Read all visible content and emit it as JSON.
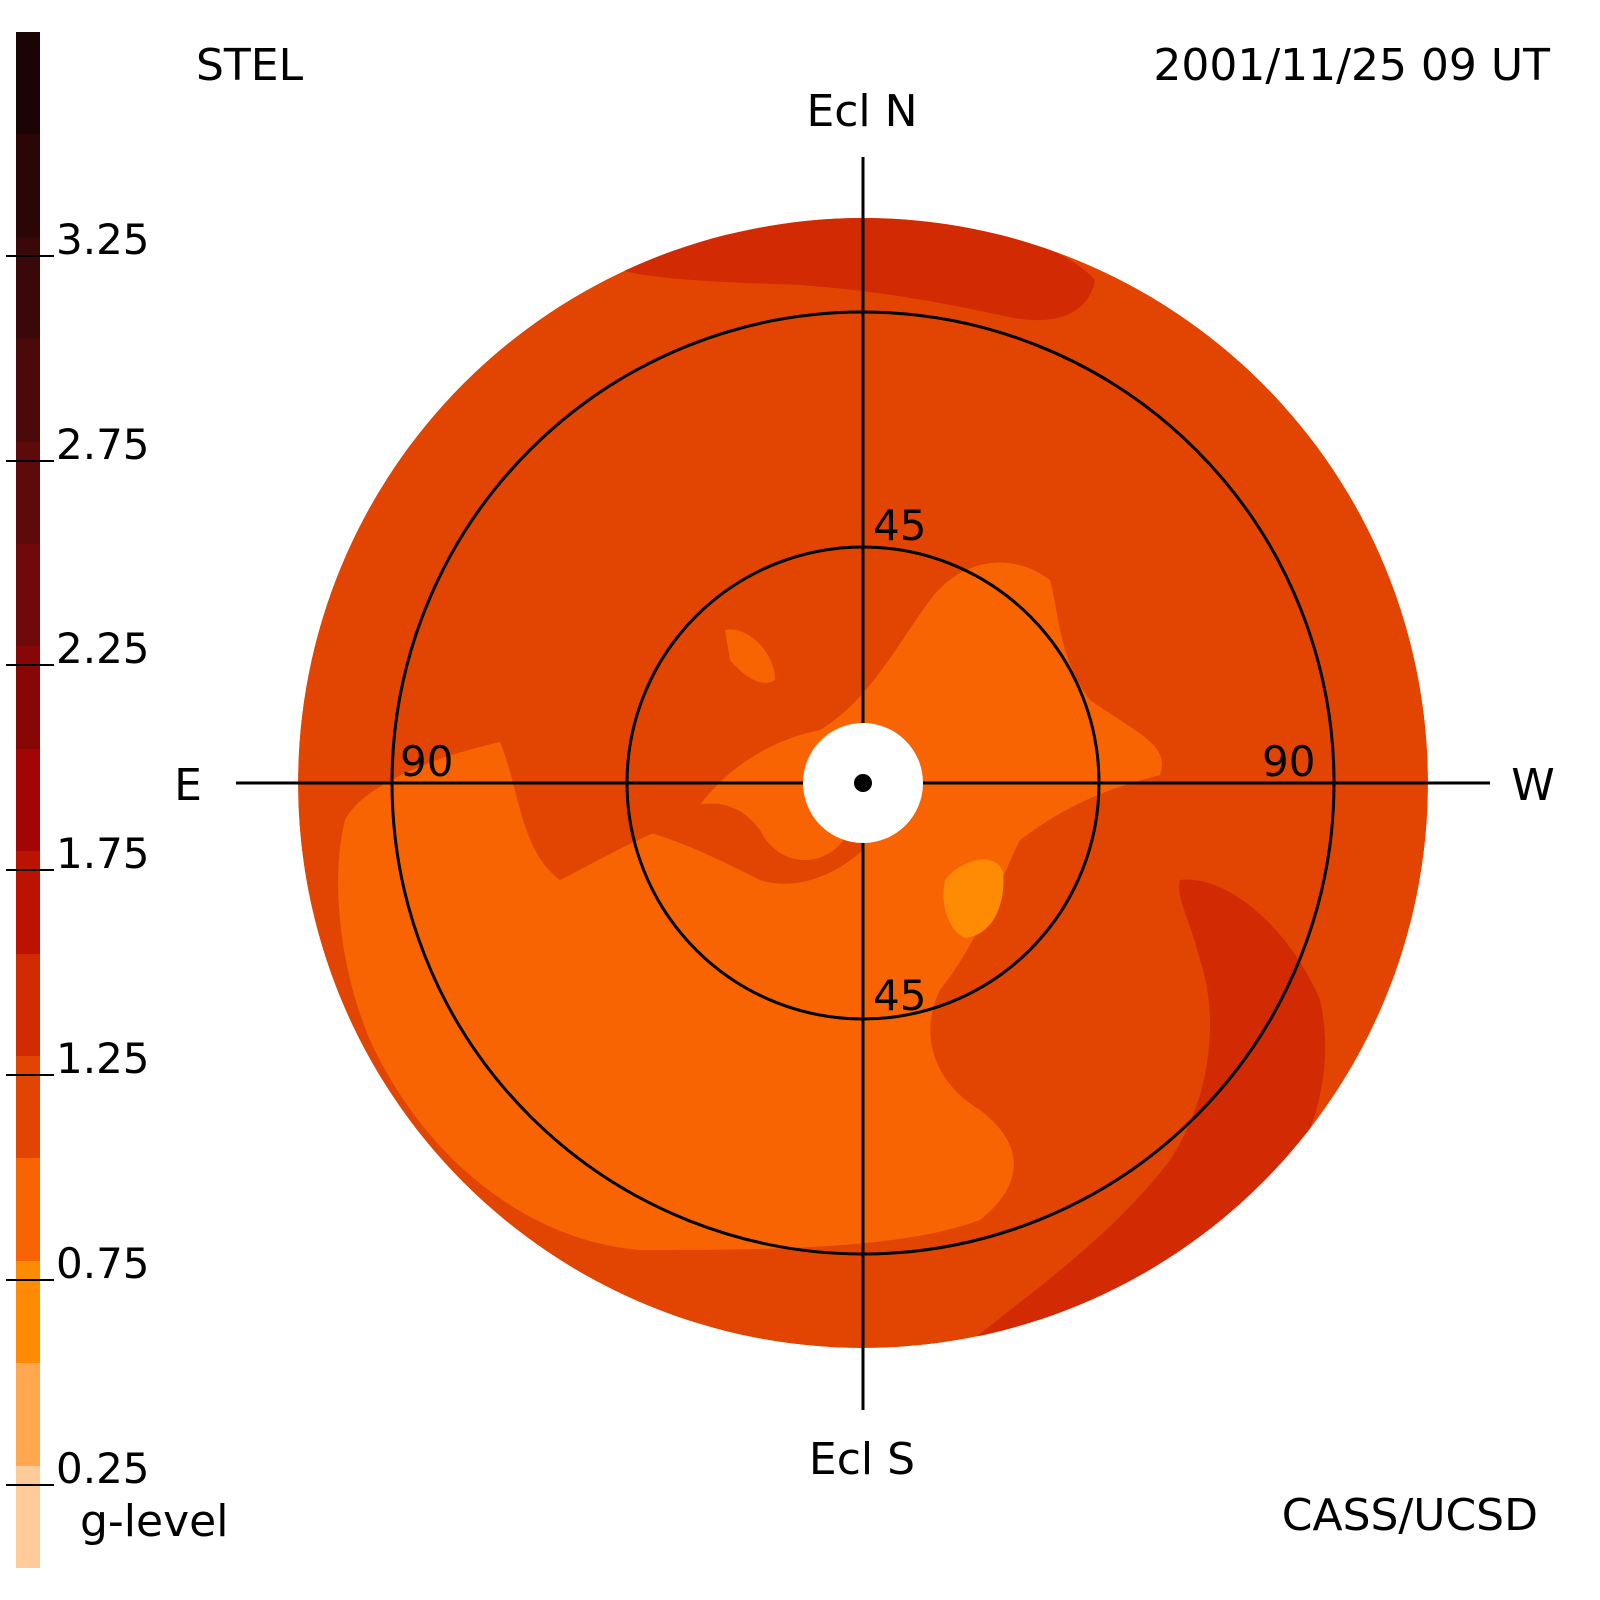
{
  "header": {
    "instrument": "STEL",
    "timestamp": "2001/11/25 09 UT",
    "credit": "CASS/UCSD"
  },
  "colorbar": {
    "title": "g-level",
    "tick_labels": [
      "3.25",
      "2.75",
      "2.25",
      "1.75",
      "1.25",
      "0.75",
      "0.25"
    ],
    "tick_values": [
      3.25,
      2.75,
      2.25,
      1.75,
      1.25,
      0.75,
      0.25
    ],
    "range": [
      0.0,
      3.75
    ],
    "bands": [
      {
        "from": 3.5,
        "to": 3.75,
        "color": "#1a0404"
      },
      {
        "from": 3.25,
        "to": 3.5,
        "color": "#2a0606"
      },
      {
        "from": 3.0,
        "to": 3.25,
        "color": "#3a0808"
      },
      {
        "from": 2.75,
        "to": 3.0,
        "color": "#4a0a0a"
      },
      {
        "from": 2.5,
        "to": 2.75,
        "color": "#5c0a0a"
      },
      {
        "from": 2.25,
        "to": 2.5,
        "color": "#6e0a0a"
      },
      {
        "from": 2.0,
        "to": 2.25,
        "color": "#870606"
      },
      {
        "from": 1.75,
        "to": 2.0,
        "color": "#a30404"
      },
      {
        "from": 1.5,
        "to": 1.75,
        "color": "#bb1202"
      },
      {
        "from": 1.25,
        "to": 1.5,
        "color": "#d22a02"
      },
      {
        "from": 1.0,
        "to": 1.25,
        "color": "#e24402"
      },
      {
        "from": 0.75,
        "to": 1.0,
        "color": "#f86402"
      },
      {
        "from": 0.5,
        "to": 0.75,
        "color": "#ff8a04"
      },
      {
        "from": 0.25,
        "to": 0.5,
        "color": "#ffa850"
      },
      {
        "from": 0.0,
        "to": 0.25,
        "color": "#ffcc99"
      }
    ]
  },
  "chart_data": {
    "type": "heatmap",
    "title": "",
    "projection": "fisheye sky map centered on the Sun",
    "directions": {
      "north": "Ecl N",
      "south": "Ecl S",
      "east": "E",
      "west": "W"
    },
    "elongation_circles": [
      {
        "value": 45,
        "labels": [
          "45",
          "45"
        ]
      },
      {
        "value": 90,
        "labels": [
          "90",
          "90"
        ]
      }
    ],
    "field_extent_deg": 108,
    "regions": [
      {
        "name": "background",
        "g_level": 1.1,
        "color": "#e24402"
      },
      {
        "name": "inner-low-region",
        "g_level": 0.9,
        "color": "#f86402"
      },
      {
        "name": "sunward-bright-spot",
        "g_level": 0.6,
        "color": "#ff8a04"
      },
      {
        "name": "southwest-arc",
        "g_level": 1.4,
        "color": "#d22a02"
      },
      {
        "name": "north-rim-patch",
        "g_level": 1.4,
        "color": "#d22a02"
      }
    ],
    "legend_position": "left",
    "grid": false
  }
}
